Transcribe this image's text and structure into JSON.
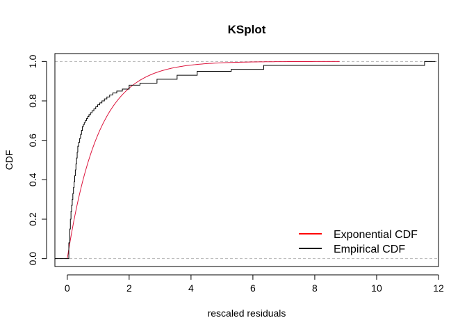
{
  "chart_data": {
    "type": "line",
    "title": "KSplot",
    "xlabel": "rescaled residuals",
    "ylabel": "CDF",
    "xlim": [
      -0.4,
      12.0
    ],
    "ylim": [
      -0.04,
      1.04
    ],
    "x_ticks": [
      0,
      2,
      4,
      6,
      8,
      10,
      12
    ],
    "y_ticks": [
      0.0,
      0.2,
      0.4,
      0.6,
      0.8,
      1.0
    ],
    "x_tick_labels": [
      "0",
      "2",
      "4",
      "6",
      "8",
      "10",
      "12"
    ],
    "y_tick_labels": [
      "0.0",
      "0.2",
      "0.4",
      "0.6",
      "0.8",
      "1.0"
    ],
    "reference_lines": [
      0,
      1
    ],
    "legend_position": "bottom-right",
    "legend": [
      {
        "label": "Exponential CDF",
        "color": "#ff0000"
      },
      {
        "label": "Empirical CDF",
        "color": "#000000"
      }
    ],
    "series": [
      {
        "name": "Exponential CDF",
        "color": "#dc143c",
        "kind": "curve",
        "function": "exponential",
        "rate": 1.0,
        "x_range": [
          0,
          8.8
        ]
      },
      {
        "name": "Empirical CDF",
        "color": "#000000",
        "kind": "step",
        "start_x": -0.4,
        "end_x": 11.6,
        "x": [
          0.05,
          0.08,
          0.1,
          0.12,
          0.14,
          0.16,
          0.18,
          0.2,
          0.22,
          0.24,
          0.26,
          0.28,
          0.3,
          0.32,
          0.34,
          0.37,
          0.4,
          0.43,
          0.46,
          0.49,
          0.52,
          0.55,
          0.58,
          0.62,
          0.66,
          0.7,
          0.75,
          0.8,
          0.86,
          0.92,
          0.98,
          1.05,
          1.12,
          1.2,
          1.28,
          1.37,
          1.47,
          1.6,
          1.78,
          2.0,
          2.35,
          2.9,
          3.55,
          4.2,
          5.3,
          6.35,
          11.55
        ],
        "y": [
          0.08,
          0.15,
          0.2,
          0.24,
          0.27,
          0.3,
          0.33,
          0.36,
          0.39,
          0.42,
          0.45,
          0.48,
          0.51,
          0.54,
          0.57,
          0.59,
          0.61,
          0.63,
          0.65,
          0.67,
          0.68,
          0.69,
          0.7,
          0.71,
          0.72,
          0.73,
          0.74,
          0.75,
          0.76,
          0.77,
          0.78,
          0.79,
          0.8,
          0.81,
          0.82,
          0.83,
          0.84,
          0.85,
          0.86,
          0.88,
          0.89,
          0.91,
          0.93,
          0.95,
          0.96,
          0.98,
          1.0
        ]
      }
    ]
  }
}
